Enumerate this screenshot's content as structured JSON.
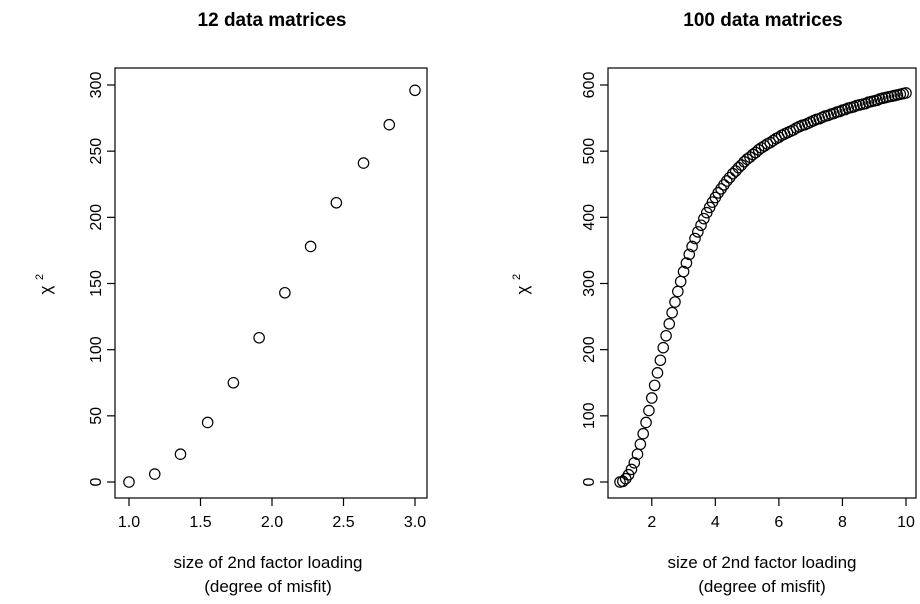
{
  "chart_data": [
    {
      "type": "scatter",
      "title": "12 data matrices",
      "xlabel": [
        "size of 2nd factor loading",
        "(degree of misfit)"
      ],
      "ylabel": "χ",
      "ylabel_sup": "2",
      "xlim": [
        1.0,
        3.0
      ],
      "ylim": [
        0,
        300
      ],
      "xticks": [
        "1.0",
        "1.5",
        "2.0",
        "2.5",
        "3.0"
      ],
      "yticks": [
        "0",
        "50",
        "100",
        "150",
        "200",
        "250",
        "300"
      ],
      "grid": false,
      "x": [
        1.0,
        1.18,
        1.36,
        1.55,
        1.73,
        1.91,
        2.09,
        2.27,
        2.45,
        2.64,
        2.82,
        3.0
      ],
      "y": [
        0,
        6,
        21,
        45,
        75,
        109,
        143,
        178,
        211,
        241,
        270,
        296
      ]
    },
    {
      "type": "scatter",
      "title": "100 data matrices",
      "xlabel": [
        "size of 2nd factor loading",
        "(degree of misfit)"
      ],
      "ylabel": "χ",
      "ylabel_sup": "2",
      "xlim": [
        1,
        10
      ],
      "ylim": [
        0,
        600
      ],
      "xticks": [
        "2",
        "4",
        "6",
        "8",
        "10"
      ],
      "yticks": [
        "0",
        "100",
        "200",
        "300",
        "400",
        "500",
        "600"
      ],
      "grid": false,
      "x": [
        1.0,
        1.09,
        1.18,
        1.27,
        1.36,
        1.45,
        1.55,
        1.64,
        1.73,
        1.82,
        1.91,
        2.0,
        2.09,
        2.18,
        2.27,
        2.36,
        2.45,
        2.55,
        2.64,
        2.73,
        2.82,
        2.91,
        3.0,
        3.09,
        3.18,
        3.27,
        3.36,
        3.45,
        3.55,
        3.64,
        3.73,
        3.82,
        3.91,
        4.0,
        4.09,
        4.18,
        4.27,
        4.36,
        4.45,
        4.55,
        4.64,
        4.73,
        4.82,
        4.91,
        5.0,
        5.09,
        5.18,
        5.27,
        5.36,
        5.45,
        5.55,
        5.64,
        5.73,
        5.82,
        5.91,
        6.0,
        6.09,
        6.18,
        6.27,
        6.36,
        6.45,
        6.55,
        6.64,
        6.73,
        6.82,
        6.91,
        7.0,
        7.09,
        7.18,
        7.27,
        7.36,
        7.45,
        7.55,
        7.64,
        7.73,
        7.82,
        7.91,
        8.0,
        8.09,
        8.18,
        8.27,
        8.36,
        8.45,
        8.55,
        8.64,
        8.73,
        8.82,
        8.91,
        9.0,
        9.09,
        9.18,
        9.27,
        9.36,
        9.45,
        9.55,
        9.64,
        9.73,
        9.82,
        9.91,
        10.0
      ],
      "y": [
        0,
        1,
        5,
        11,
        19,
        29,
        42,
        57,
        73,
        90,
        108,
        127,
        146,
        165,
        184,
        203,
        221,
        239,
        256,
        272,
        288,
        303,
        318,
        331,
        344,
        356,
        368,
        378,
        388,
        398,
        407,
        415,
        423,
        430,
        437,
        443,
        449,
        455,
        460,
        466,
        470,
        475,
        479,
        484,
        488,
        491,
        495,
        498,
        502,
        505,
        508,
        511,
        513,
        516,
        519,
        521,
        524,
        526,
        528,
        530,
        532,
        535,
        537,
        539,
        540,
        542,
        544,
        546,
        548,
        549,
        551,
        553,
        554,
        556,
        557,
        559,
        560,
        562,
        563,
        565,
        566,
        567,
        569,
        570,
        571,
        572,
        574,
        575,
        576,
        577,
        579,
        580,
        581,
        582,
        583,
        584,
        585,
        586,
        587,
        588
      ]
    }
  ]
}
